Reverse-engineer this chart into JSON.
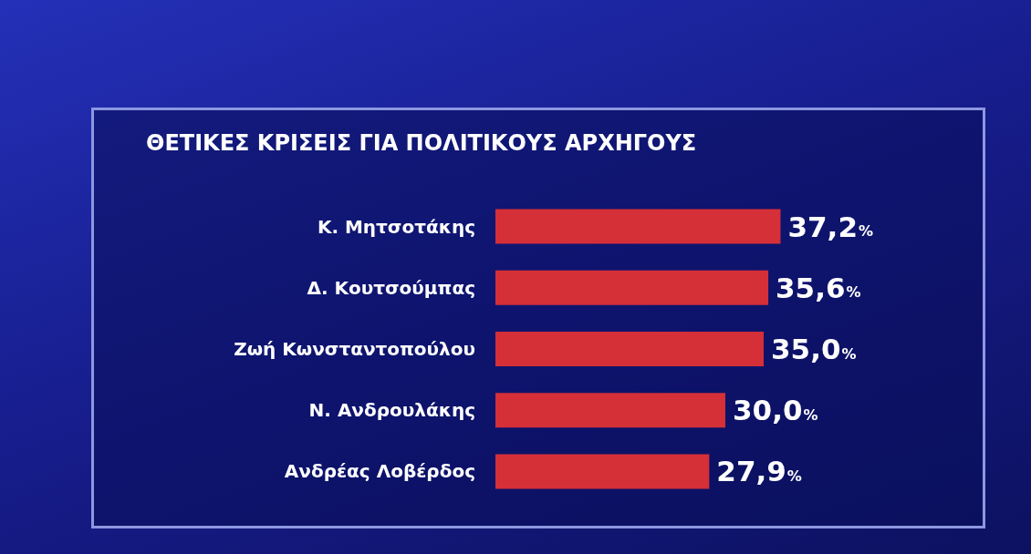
{
  "chart_data": {
    "type": "bar",
    "orientation": "horizontal",
    "title": "ΘΕΤΙΚΕΣ ΚΡΙΣΕΙΣ ΓΙΑ ΠΟΛΙΤΙΚΟΥΣ ΑΡΧΗΓΟΥΣ",
    "categories": [
      "Κ. Μητσοτάκης",
      "Δ. Κουτσούμπας",
      "Ζωή Κωνσταντοπούλου",
      "Ν. Ανδρουλάκης",
      "Ανδρέας Λοβέρδος"
    ],
    "values": [
      37.2,
      35.6,
      35.0,
      30.0,
      27.9
    ],
    "value_labels": [
      "37,2%",
      "35,6%",
      "35,0%",
      "30,0%",
      "27,9%"
    ],
    "color": "#d52f38"
  }
}
